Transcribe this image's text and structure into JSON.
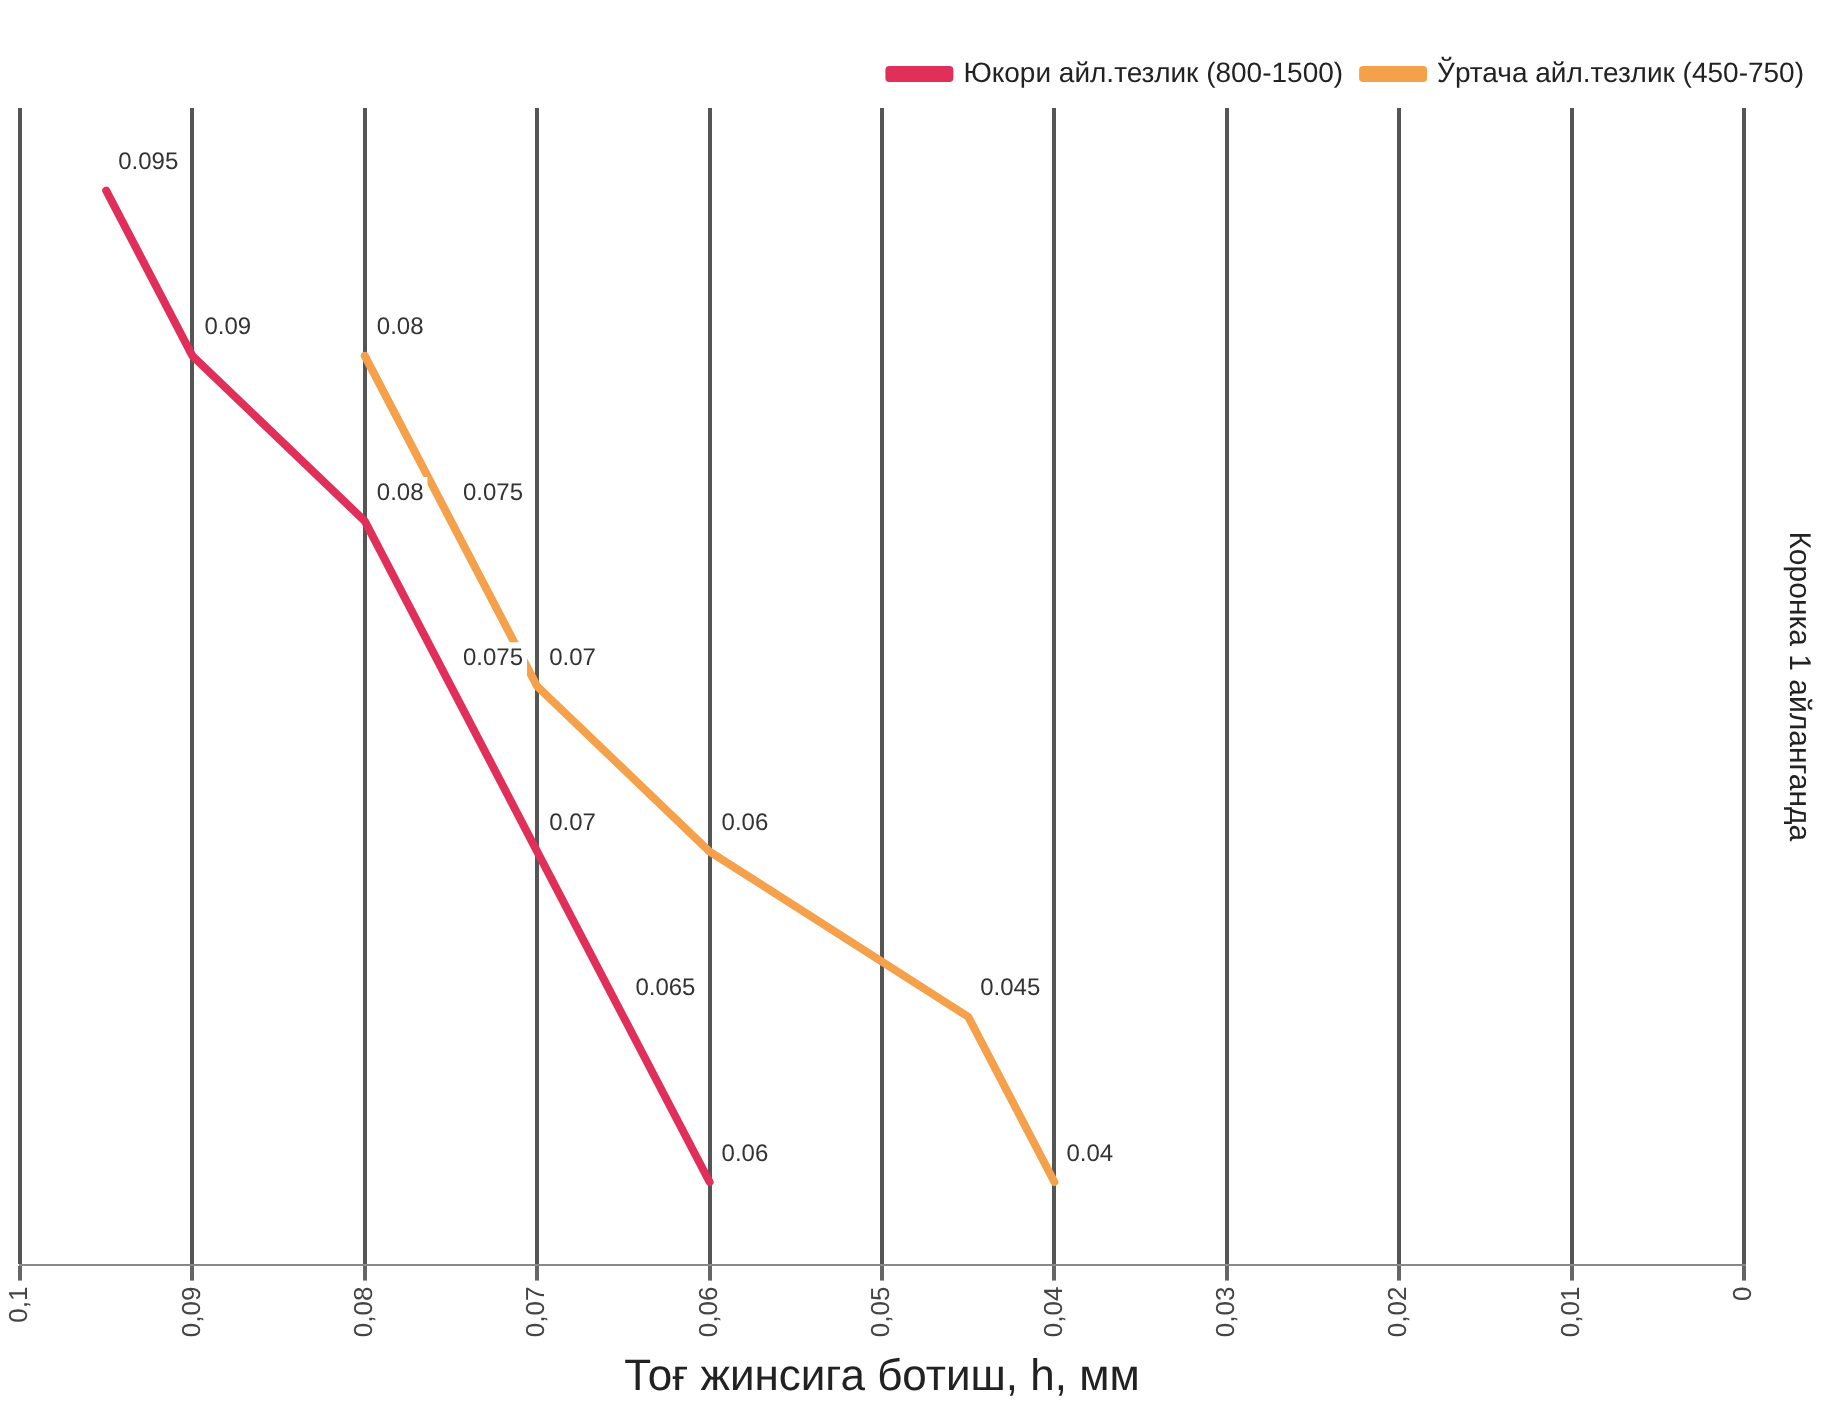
{
  "chart_data": {
    "type": "line",
    "orientation": "horizontal",
    "xlabel": "Тоғ жинсига ботиш, h, мм",
    "ylabel": "Коронка 1 айланганда",
    "categories": [
      null,
      null,
      null,
      null,
      null,
      null,
      null
    ],
    "series": [
      {
        "name": "Юкори айл.тезлик (800-1500)",
        "color": "#e0305a",
        "values": [
          0.095,
          0.09,
          0.08,
          0.075,
          0.07,
          0.065,
          0.06
        ]
      },
      {
        "name": "Ўртача айл.тезлик (450-750)",
        "color": "#f5a04a",
        "values": [
          null,
          0.08,
          0.075,
          0.07,
          0.06,
          0.045,
          0.04
        ]
      }
    ],
    "xlim": [
      0.1,
      0
    ],
    "xticks": [
      {
        "value": 0.1,
        "label": "0,1"
      },
      {
        "value": 0.09,
        "label": "0,09"
      },
      {
        "value": 0.08,
        "label": "0,08"
      },
      {
        "value": 0.07,
        "label": "0,07"
      },
      {
        "value": 0.06,
        "label": "0,06"
      },
      {
        "value": 0.05,
        "label": "0,05"
      },
      {
        "value": 0.04,
        "label": "0,04"
      },
      {
        "value": 0.03,
        "label": "0,03"
      },
      {
        "value": 0.02,
        "label": "0,02"
      },
      {
        "value": 0.01,
        "label": "0,01"
      },
      0
    ],
    "grid": "x",
    "legend": "top right",
    "data_labels": true
  }
}
